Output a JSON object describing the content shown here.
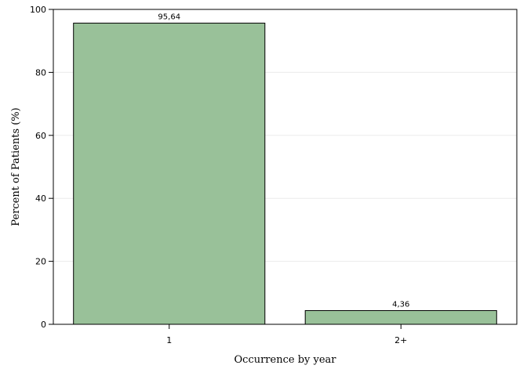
{
  "chart_data": {
    "type": "bar",
    "categories": [
      "1",
      "2+"
    ],
    "values": [
      95.64,
      4.36
    ],
    "data_labels": [
      "95,64",
      "4,36"
    ],
    "xlabel": "Occurrence by year",
    "ylabel": "Percent of Patients (%)",
    "ylim": [
      0,
      100
    ],
    "yticks": [
      0,
      20,
      40,
      60,
      80,
      100
    ],
    "grid": true,
    "bar_color": "#99c199",
    "bar_stroke": "#000000"
  }
}
